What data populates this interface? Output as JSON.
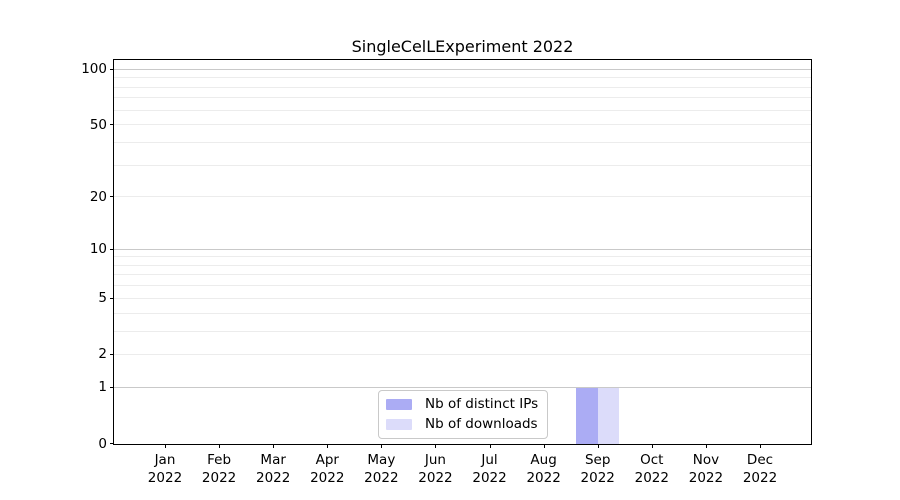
{
  "title": "SingleCelLExperiment 2022",
  "chart_data": {
    "type": "bar",
    "title": "SingleCelLExperiment 2022",
    "categories": [
      "Jan",
      "Feb",
      "Mar",
      "Apr",
      "May",
      "Jun",
      "Jul",
      "Aug",
      "Sep",
      "Oct",
      "Nov",
      "Dec"
    ],
    "x_year_label": "2022",
    "series": [
      {
        "name": "Nb of distinct IPs",
        "color": "#abacf4",
        "values": [
          0,
          0,
          0,
          0,
          0,
          0,
          0,
          0,
          1,
          0,
          0,
          0
        ]
      },
      {
        "name": "Nb of downloads",
        "color": "#dcdcfa",
        "values": [
          0,
          0,
          0,
          0,
          0,
          0,
          0,
          0,
          1,
          0,
          0,
          0
        ]
      }
    ],
    "yscale": "log1p",
    "ylim": [
      0,
      113
    ],
    "yticks": [
      0,
      1,
      2,
      5,
      10,
      20,
      50,
      100
    ],
    "grid_major": [
      1,
      10,
      100
    ],
    "grid_minor": [
      2,
      3,
      4,
      5,
      6,
      7,
      8,
      9,
      20,
      30,
      40,
      50,
      60,
      70,
      80,
      90
    ],
    "grid": "horizontal only",
    "legend_position": "lower center",
    "colors": {
      "grid_major": "#c9c9c9",
      "grid_minor": "#ececec",
      "axis": "#000000"
    }
  }
}
